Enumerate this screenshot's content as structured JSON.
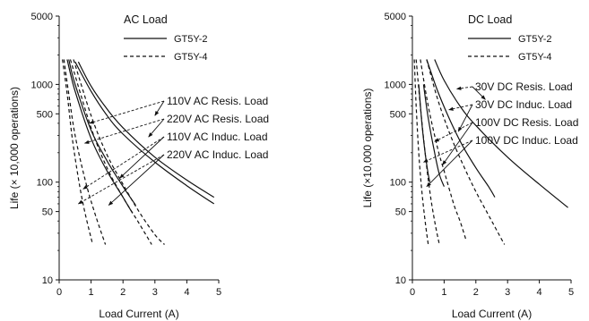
{
  "chart_data": [
    {
      "type": "line",
      "title": "AC Load",
      "xlabel": "Load Current (A)",
      "ylabel": "Life (× 10,000 operations)",
      "xlim": [
        0,
        5
      ],
      "ylim": [
        10,
        5000
      ],
      "yscale": "log",
      "x_ticks": [
        0,
        1,
        2,
        3,
        4,
        5
      ],
      "y_ticks": [
        10,
        50,
        100,
        500,
        1000,
        5000
      ],
      "legend": [
        {
          "name": "GT5Y-2",
          "style": "solid"
        },
        {
          "name": "GT5Y-4",
          "style": "dashed"
        }
      ],
      "legend_position": "top",
      "series": [
        {
          "model": "GT5Y-2",
          "load": "110V AC Resis. Load",
          "style": "solid",
          "points": [
            [
              0.6,
              1700
            ],
            [
              1,
              960
            ],
            [
              1.5,
              560
            ],
            [
              2,
              360
            ],
            [
              3,
              180
            ],
            [
              4,
              105
            ],
            [
              4.85,
              70
            ]
          ]
        },
        {
          "model": "GT5Y-2",
          "load": "220V AC Resis. Load",
          "style": "solid",
          "points": [
            [
              0.5,
              1700
            ],
            [
              1,
              850
            ],
            [
              1.5,
              480
            ],
            [
              2,
              310
            ],
            [
              3,
              160
            ],
            [
              4,
              92
            ],
            [
              4.85,
              60
            ]
          ]
        },
        {
          "model": "GT5Y-2",
          "load": "110V AC Induc. Load",
          "style": "solid",
          "points": [
            [
              0.3,
              1800
            ],
            [
              0.5,
              1000
            ],
            [
              1,
              340
            ],
            [
              1.5,
              165
            ],
            [
              2,
              90
            ],
            [
              2.4,
              58
            ]
          ]
        },
        {
          "model": "GT5Y-2",
          "load": "220V AC Induc. Load",
          "style": "solid",
          "points": [
            [
              0.25,
              1800
            ],
            [
              0.5,
              850
            ],
            [
              1,
              280
            ],
            [
              1.5,
              130
            ],
            [
              2,
              70
            ],
            [
              2.3,
              48
            ]
          ]
        },
        {
          "model": "GT5Y-4",
          "load": "110V AC Resis. Load",
          "style": "dashed",
          "points": [
            [
              0.45,
              1800
            ],
            [
              1,
              480
            ],
            [
              1.5,
              190
            ],
            [
              2,
              95
            ],
            [
              2.5,
              50
            ],
            [
              3,
              29
            ],
            [
              3.3,
              23
            ]
          ]
        },
        {
          "model": "GT5Y-4",
          "load": "220V AC Resis. Load",
          "style": "dashed",
          "points": [
            [
              0.35,
              1800
            ],
            [
              1,
              360
            ],
            [
              1.5,
              140
            ],
            [
              2,
              70
            ],
            [
              2.5,
              38
            ],
            [
              2.9,
              23
            ]
          ]
        },
        {
          "model": "GT5Y-4",
          "load": "110V AC Induc. Load",
          "style": "dashed",
          "points": [
            [
              0.15,
              1800
            ],
            [
              0.3,
              800
            ],
            [
              0.5,
              300
            ],
            [
              0.8,
              110
            ],
            [
              1.1,
              50
            ],
            [
              1.45,
              23
            ]
          ]
        },
        {
          "model": "GT5Y-4",
          "load": "220V AC Induc. Load",
          "style": "dashed",
          "points": [
            [
              0.1,
              1800
            ],
            [
              0.25,
              800
            ],
            [
              0.4,
              300
            ],
            [
              0.6,
              110
            ],
            [
              0.8,
              50
            ],
            [
              1.05,
              23
            ]
          ]
        }
      ],
      "annotations": [
        {
          "text": "110V AC Resis. Load",
          "point_to": [
            [
              0.95,
              400
            ],
            [
              3.0,
              480
            ]
          ]
        },
        {
          "text": "220V AC Resis. Load",
          "point_to": [
            [
              0.8,
              250
            ],
            [
              2.8,
              290
            ]
          ]
        },
        {
          "text": "110V AC Induc. Load",
          "point_to": [
            [
              0.75,
              85
            ],
            [
              1.9,
              110
            ]
          ]
        },
        {
          "text": "220V AC Induc. Load",
          "point_to": [
            [
              0.6,
              60
            ],
            [
              1.55,
              58
            ]
          ]
        }
      ]
    },
    {
      "type": "line",
      "title": "DC Load",
      "xlabel": "Load Current (A)",
      "ylabel": "Life (×10,000 operations)",
      "xlim": [
        0,
        5
      ],
      "ylim": [
        10,
        5000
      ],
      "yscale": "log",
      "x_ticks": [
        0,
        1,
        2,
        3,
        4,
        5
      ],
      "y_ticks": [
        10,
        50,
        100,
        500,
        1000,
        5000
      ],
      "legend": [
        {
          "name": "GT5Y-2",
          "style": "solid"
        },
        {
          "name": "GT5Y-4",
          "style": "dashed"
        }
      ],
      "legend_position": "top",
      "series": [
        {
          "model": "GT5Y-2",
          "load": "30V DC Resis. Load",
          "style": "solid",
          "points": [
            [
              0.7,
              1800
            ],
            [
              1,
              1100
            ],
            [
              1.5,
              600
            ],
            [
              2,
              380
            ],
            [
              3,
              180
            ],
            [
              4,
              95
            ],
            [
              4.9,
              55
            ]
          ]
        },
        {
          "model": "GT5Y-2",
          "load": "30V DC Induc. Load",
          "style": "solid",
          "points": [
            [
              0.45,
              1800
            ],
            [
              0.8,
              850
            ],
            [
              1.2,
              420
            ],
            [
              1.6,
              230
            ],
            [
              2,
              140
            ],
            [
              2.4,
              90
            ],
            [
              2.6,
              70
            ]
          ]
        },
        {
          "model": "GT5Y-2",
          "load": "100V DC Resis. Load",
          "style": "solid",
          "points": [
            [
              0.35,
              1000
            ],
            [
              0.5,
              450
            ],
            [
              0.7,
              200
            ],
            [
              0.85,
              120
            ],
            [
              1,
              90
            ]
          ]
        },
        {
          "model": "GT5Y-2",
          "load": "100V DC Induc. Load",
          "style": "solid",
          "points": [
            [
              0.2,
              1000
            ],
            [
              0.3,
              400
            ],
            [
              0.4,
              200
            ],
            [
              0.5,
              120
            ],
            [
              0.55,
              100
            ]
          ]
        },
        {
          "model": "GT5Y-4",
          "load": "30V DC Resis. Load",
          "style": "dashed",
          "points": [
            [
              0.45,
              1800
            ],
            [
              0.8,
              700
            ],
            [
              1.2,
              300
            ],
            [
              1.6,
              150
            ],
            [
              2,
              80
            ],
            [
              2.5,
              40
            ],
            [
              2.9,
              23
            ]
          ]
        },
        {
          "model": "GT5Y-4",
          "load": "30V DC Induc. Load",
          "style": "dashed",
          "points": [
            [
              0.25,
              1800
            ],
            [
              0.5,
              600
            ],
            [
              0.8,
              220
            ],
            [
              1,
              130
            ],
            [
              1.3,
              60
            ],
            [
              1.5,
              40
            ],
            [
              1.7,
              25
            ]
          ]
        },
        {
          "model": "GT5Y-4",
          "load": "100V DC Resis. Load",
          "style": "dashed",
          "points": [
            [
              0.12,
              1800
            ],
            [
              0.25,
              600
            ],
            [
              0.4,
              200
            ],
            [
              0.55,
              80
            ],
            [
              0.7,
              40
            ],
            [
              0.85,
              23
            ]
          ]
        },
        {
          "model": "GT5Y-4",
          "load": "100V DC Induc. Load",
          "style": "dashed",
          "points": [
            [
              0.06,
              1800
            ],
            [
              0.12,
              600
            ],
            [
              0.2,
              200
            ],
            [
              0.3,
              80
            ],
            [
              0.4,
              40
            ],
            [
              0.5,
              23
            ]
          ]
        }
      ],
      "annotations": [
        {
          "text": "30V DC Resis. Load",
          "point_to": [
            [
              1.4,
              900
            ],
            [
              2.3,
              700
            ]
          ]
        },
        {
          "text": "30V DC Induc. Load",
          "point_to": [
            [
              1.15,
              550
            ],
            [
              1.45,
              330
            ]
          ]
        },
        {
          "text": "100V DC Resis. Load",
          "point_to": [
            [
              0.7,
              260
            ],
            [
              0.95,
              150
            ]
          ]
        },
        {
          "text": "100V DC Induc. Load",
          "point_to": [
            [
              0.35,
              160
            ],
            [
              0.45,
              90
            ]
          ]
        }
      ]
    }
  ]
}
